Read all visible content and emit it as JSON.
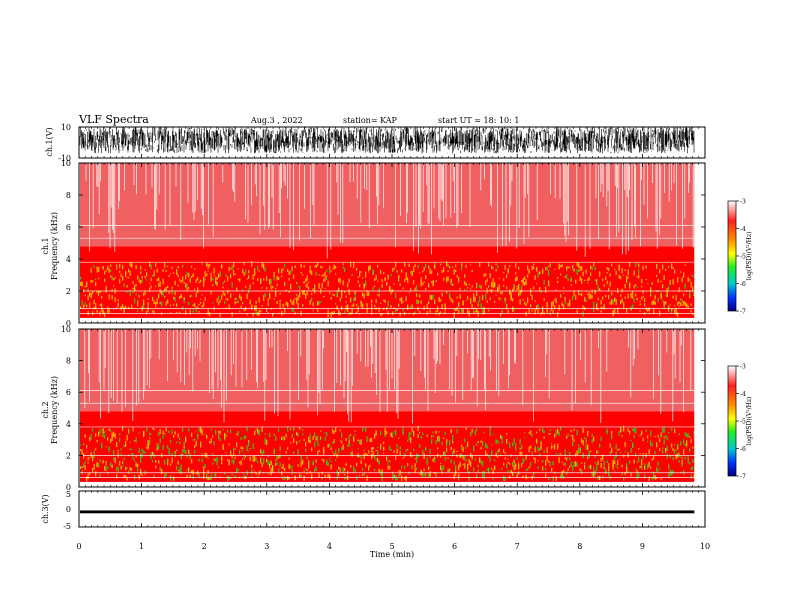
{
  "header": {
    "title": "VLF Spectra",
    "date": "Aug.3 , 2022",
    "station": "station= KAP",
    "start": "start UT = 18: 10: 1"
  },
  "chart_data": [
    {
      "type": "line",
      "panel": "ch1-waveform",
      "ylabel": "ch.1(V)",
      "ylim": [
        -10,
        10
      ],
      "yticks": [
        "10",
        "-10"
      ],
      "xlim": [
        0,
        10
      ],
      "description_values": {
        "approx_min": -7,
        "approx_max": 10
      }
    },
    {
      "type": "heatmap",
      "panel": "ch1-spectrogram",
      "ylabel": "ch.1\nFrequency (kHz)",
      "ylim": [
        0,
        10
      ],
      "yticks": [
        "0",
        "2",
        "4",
        "6",
        "8",
        "10"
      ],
      "xlim": [
        0,
        10
      ],
      "colorbar": {
        "label": "log(PSD)(V²/Hz)",
        "range": [
          -7,
          -3
        ],
        "ticks": [
          "-3",
          "-4",
          "-5",
          "-6",
          "-7"
        ]
      }
    },
    {
      "type": "heatmap",
      "panel": "ch2-spectrogram",
      "ylabel": "ch.2\nFrequency (kHz)",
      "ylim": [
        0,
        10
      ],
      "yticks": [
        "0",
        "2",
        "4",
        "6",
        "8",
        "10"
      ],
      "xlim": [
        0,
        10
      ],
      "colorbar": {
        "label": "log(PSD)(V²/Hz)",
        "range": [
          -7,
          -3
        ],
        "ticks": [
          "-3",
          "-4",
          "-5",
          "-6",
          "-7"
        ]
      }
    },
    {
      "type": "line",
      "panel": "ch3-waveform",
      "ylabel": "ch.3(V)",
      "ylim": [
        -5,
        5
      ],
      "yticks": [
        "5",
        "0",
        "-5"
      ],
      "xlim": [
        0,
        10
      ],
      "description_values": {
        "approx_min": -1.2,
        "approx_max": -0.4
      }
    }
  ],
  "xaxis": {
    "label": "Time (min)",
    "ticks": [
      "0",
      "1",
      "2",
      "3",
      "4",
      "5",
      "6",
      "7",
      "8",
      "9",
      "10"
    ],
    "data_end": 9.83
  },
  "colors": {
    "spec_high": "#ff0000",
    "spec_white": "#ffffff",
    "spec_yellow": "#ffd700",
    "spec_green": "#22dd22"
  }
}
